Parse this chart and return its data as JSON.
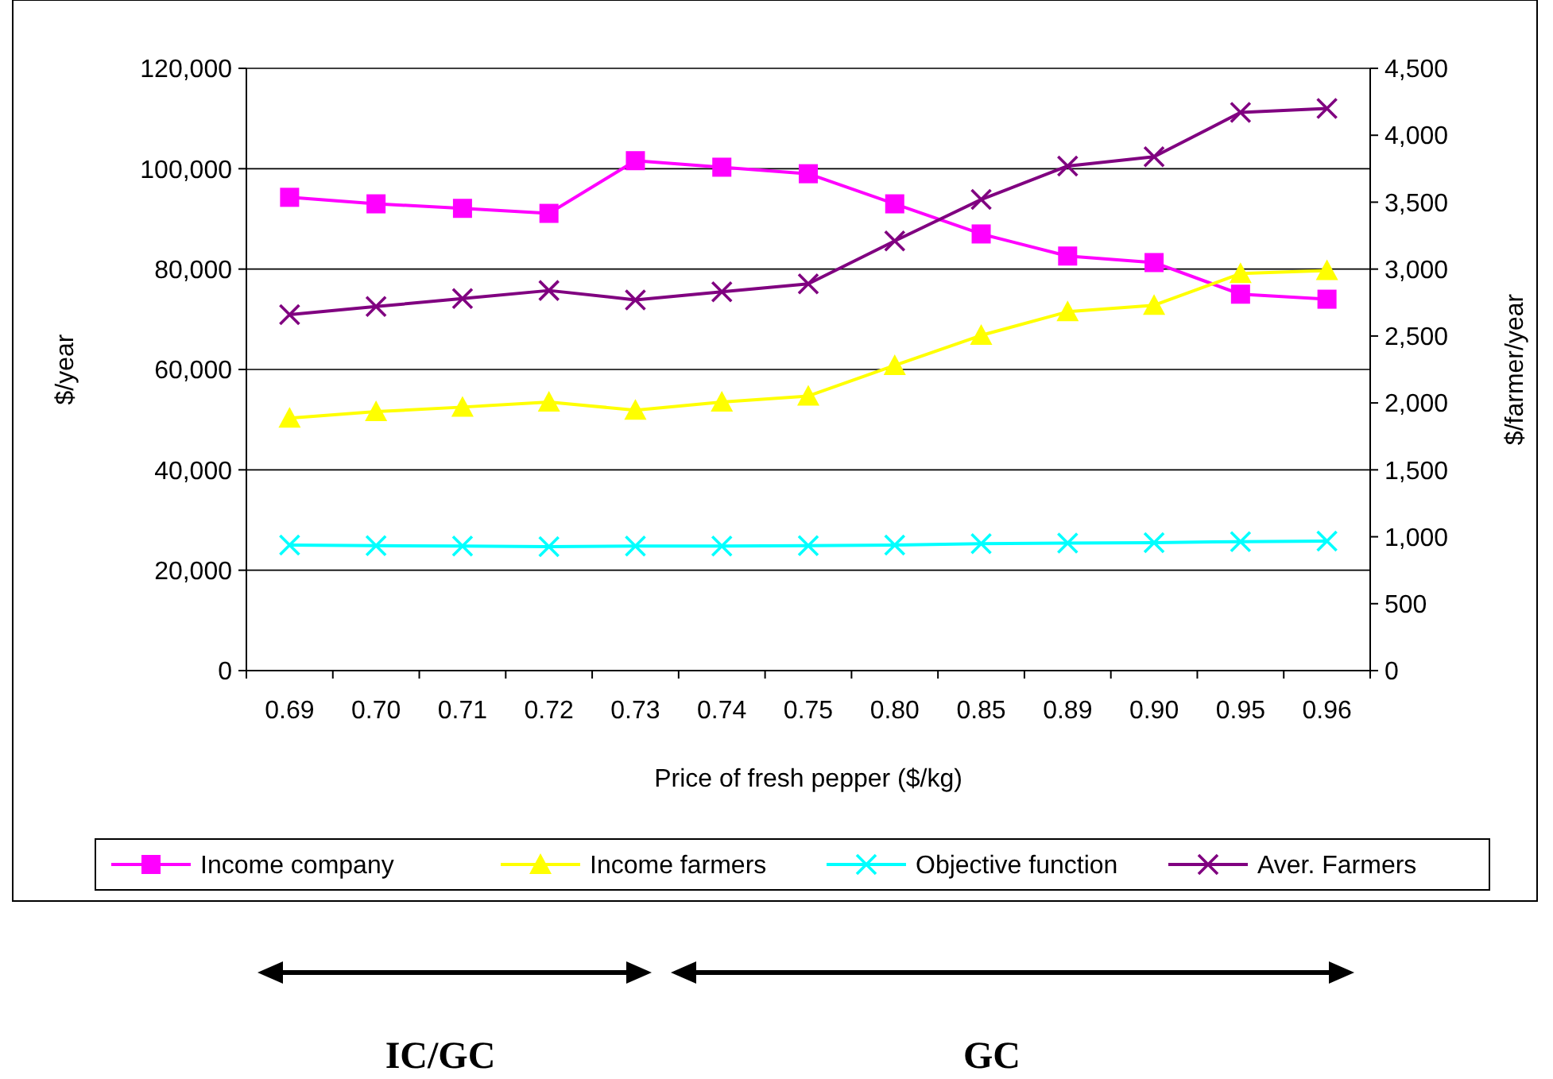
{
  "chart_data": {
    "type": "line",
    "xlabel": "Price of fresh pepper ($/kg)",
    "ylabel": "$/year",
    "y2label": "$/farmer/year",
    "categories": [
      "0.69",
      "0.70",
      "0.71",
      "0.72",
      "0.73",
      "0.74",
      "0.75",
      "0.80",
      "0.85",
      "0.89",
      "0.90",
      "0.95",
      "0.96"
    ],
    "series": [
      {
        "name": "Income company",
        "color": "#ff00ff",
        "marker": "square",
        "values": [
          94300,
          93000,
          92100,
          91100,
          101600,
          100300,
          99000,
          93000,
          87000,
          82600,
          81300,
          75000,
          74000
        ]
      },
      {
        "name": "Income farmers",
        "color": "#ffff00",
        "marker": "triangle",
        "values": [
          50300,
          51600,
          52500,
          53500,
          51900,
          53500,
          54700,
          60800,
          66800,
          71500,
          72800,
          79100,
          79700
        ]
      },
      {
        "name": "Objective function",
        "color": "#00ffff",
        "marker": "cross",
        "values": [
          25000,
          24900,
          24800,
          24700,
          24800,
          24800,
          24900,
          25000,
          25300,
          25400,
          25500,
          25700,
          25800
        ]
      },
      {
        "name": "Aver. Farmers",
        "color": "#800080",
        "marker": "cross",
        "axis": "y2",
        "values": [
          2660,
          2720,
          2780,
          2840,
          2770,
          2830,
          2890,
          3210,
          3520,
          3770,
          3840,
          4170,
          4200
        ]
      }
    ],
    "ylim": [
      0,
      120000
    ],
    "yticks": [
      {
        "value": 0,
        "label": "0"
      },
      {
        "value": 20000,
        "label": "20,000"
      },
      {
        "value": 40000,
        "label": "40,000"
      },
      {
        "value": 60000,
        "label": "60,000"
      },
      {
        "value": 80000,
        "label": "80,000"
      },
      {
        "value": 100000,
        "label": "100,000"
      },
      {
        "value": 120000,
        "label": "120,000"
      }
    ],
    "y2lim": [
      0,
      4500
    ],
    "y2ticks": [
      {
        "value": 0,
        "label": "0"
      },
      {
        "value": 500,
        "label": "500"
      },
      {
        "value": 1000,
        "label": "1,000"
      },
      {
        "value": 1500,
        "label": "1,500"
      },
      {
        "value": 2000,
        "label": "2,000"
      },
      {
        "value": 2500,
        "label": "2,500"
      },
      {
        "value": 3000,
        "label": "3,000"
      },
      {
        "value": 3500,
        "label": "3,500"
      },
      {
        "value": 4000,
        "label": "4,000"
      },
      {
        "value": 4500,
        "label": "4,500"
      }
    ],
    "grid": "y",
    "legend": "bottom",
    "line_style": "solid",
    "annotations": [
      "IC/GC",
      "GC"
    ]
  }
}
